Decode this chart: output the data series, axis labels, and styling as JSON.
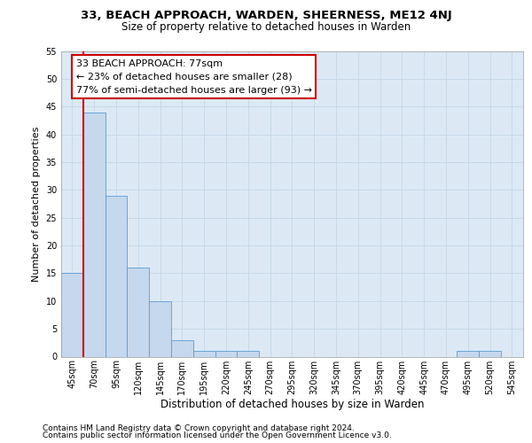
{
  "title1": "33, BEACH APPROACH, WARDEN, SHEERNESS, ME12 4NJ",
  "title2": "Size of property relative to detached houses in Warden",
  "xlabel": "Distribution of detached houses by size in Warden",
  "ylabel": "Number of detached properties",
  "categories": [
    "45sqm",
    "70sqm",
    "95sqm",
    "120sqm",
    "145sqm",
    "170sqm",
    "195sqm",
    "220sqm",
    "245sqm",
    "270sqm",
    "295sqm",
    "320sqm",
    "345sqm",
    "370sqm",
    "395sqm",
    "420sqm",
    "445sqm",
    "470sqm",
    "495sqm",
    "520sqm",
    "545sqm"
  ],
  "values": [
    15,
    44,
    29,
    16,
    10,
    3,
    1,
    1,
    1,
    0,
    0,
    0,
    0,
    0,
    0,
    0,
    0,
    0,
    1,
    1,
    0
  ],
  "bar_color": "#c5d8ed",
  "bar_edge_color": "#5b9bd5",
  "grid_color": "#c8d8e8",
  "background_color": "#dce9f5",
  "annotation_box_color": "#ffffff",
  "annotation_border_color": "#cc0000",
  "vline_color": "#cc0000",
  "annotation_title": "33 BEACH APPROACH: 77sqm",
  "annotation_line1": "← 23% of detached houses are smaller (28)",
  "annotation_line2": "77% of semi-detached houses are larger (93) →",
  "ylim": [
    0,
    55
  ],
  "yticks": [
    0,
    5,
    10,
    15,
    20,
    25,
    30,
    35,
    40,
    45,
    50,
    55
  ],
  "footnote1": "Contains HM Land Registry data © Crown copyright and database right 2024.",
  "footnote2": "Contains public sector information licensed under the Open Government Licence v3.0.",
  "title1_fontsize": 9.5,
  "title2_fontsize": 8.5,
  "xlabel_fontsize": 8.5,
  "ylabel_fontsize": 8,
  "tick_fontsize": 7,
  "annotation_fontsize": 8,
  "footnote_fontsize": 6.5
}
